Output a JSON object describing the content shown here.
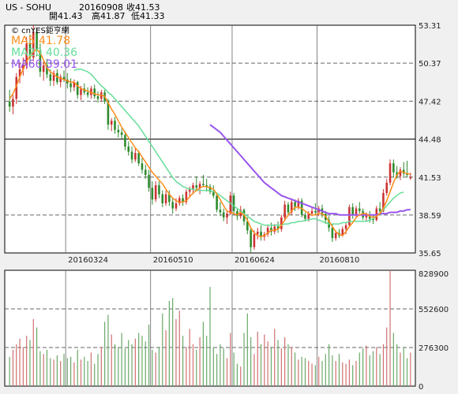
{
  "header": {
    "symbol": "US - SOHU",
    "date": "20160908",
    "close_label": "收41.53",
    "open_label": "開41.43",
    "high_label": "高41.87",
    "low_label": "低41.33"
  },
  "legend": {
    "copyright": "© cnYES鉅亨網",
    "ma5": "MA5 41.78",
    "ma20": "MA20 40.36",
    "ma60": "MA60 39.01"
  },
  "colors": {
    "up": "#cc3333",
    "down": "#2e8b2e",
    "ma5": "#ff8c1a",
    "ma20": "#66dd99",
    "ma60": "#9955ee",
    "grid": "#666666",
    "vol_up": "#d07070",
    "vol_down": "#6aa86a"
  },
  "chart_data": [
    {
      "type": "candlestick",
      "y_ticks": [
        "53.31",
        "50.37",
        "47.42",
        "44.48",
        "41.53",
        "38.59",
        "35.65"
      ],
      "x_ticks": [
        "20160324",
        "20160510",
        "20160624",
        "20160810"
      ],
      "ylim": [
        35.65,
        53.31
      ],
      "series": [
        {
          "name": "MA5",
          "value": 41.78
        },
        {
          "name": "MA20",
          "value": 40.36
        },
        {
          "name": "MA60",
          "value": 39.01
        }
      ],
      "ohlc": [
        [
          47.4,
          48.3,
          46.6,
          47.0
        ],
        [
          47.0,
          47.9,
          46.4,
          47.6
        ],
        [
          47.6,
          49.6,
          47.2,
          49.3
        ],
        [
          49.3,
          50.4,
          48.8,
          49.9
        ],
        [
          49.9,
          50.8,
          49.4,
          50.2
        ],
        [
          50.2,
          52.4,
          49.9,
          51.9
        ],
        [
          51.9,
          52.6,
          50.4,
          50.8
        ],
        [
          50.8,
          53.3,
          50.5,
          52.8
        ],
        [
          52.8,
          53.1,
          50.9,
          51.3
        ],
        [
          51.3,
          51.9,
          49.3,
          49.7
        ],
        [
          49.7,
          50.5,
          49.0,
          50.2
        ],
        [
          50.2,
          50.7,
          49.2,
          49.5
        ],
        [
          49.5,
          49.9,
          48.6,
          49.0
        ],
        [
          49.0,
          49.8,
          48.6,
          49.6
        ],
        [
          49.6,
          49.9,
          48.7,
          48.9
        ],
        [
          48.9,
          49.5,
          48.5,
          49.3
        ],
        [
          49.3,
          49.8,
          48.9,
          49.1
        ],
        [
          49.1,
          49.6,
          48.4,
          48.8
        ],
        [
          48.8,
          49.2,
          48.1,
          48.5
        ],
        [
          48.5,
          49.1,
          48.2,
          48.9
        ],
        [
          48.9,
          49.0,
          47.6,
          47.9
        ],
        [
          47.9,
          48.6,
          47.5,
          48.4
        ],
        [
          48.4,
          48.8,
          47.9,
          48.1
        ],
        [
          48.1,
          48.5,
          47.7,
          47.9
        ],
        [
          47.9,
          48.6,
          47.6,
          48.4
        ],
        [
          48.4,
          48.7,
          47.6,
          47.8
        ],
        [
          47.8,
          48.2,
          47.3,
          47.6
        ],
        [
          47.6,
          48.3,
          47.4,
          48.1
        ],
        [
          48.1,
          48.3,
          47.2,
          47.4
        ],
        [
          47.4,
          47.6,
          45.2,
          45.6
        ],
        [
          45.6,
          46.1,
          45.1,
          45.9
        ],
        [
          45.9,
          46.2,
          44.9,
          45.2
        ],
        [
          45.2,
          45.6,
          44.6,
          45.0
        ],
        [
          45.0,
          45.3,
          44.5,
          44.8
        ],
        [
          44.8,
          45.1,
          43.6,
          43.9
        ],
        [
          43.9,
          44.3,
          43.2,
          43.5
        ],
        [
          43.5,
          43.9,
          42.6,
          42.9
        ],
        [
          42.9,
          43.8,
          42.7,
          43.4
        ],
        [
          43.4,
          43.6,
          42.4,
          42.6
        ],
        [
          42.6,
          43.0,
          41.8,
          42.1
        ],
        [
          42.1,
          42.5,
          41.4,
          41.7
        ],
        [
          41.7,
          42.1,
          40.4,
          40.7
        ],
        [
          40.7,
          41.2,
          39.4,
          39.8
        ],
        [
          39.8,
          41.2,
          39.6,
          40.9
        ],
        [
          40.9,
          41.2,
          39.9,
          40.2
        ],
        [
          40.2,
          40.5,
          39.2,
          39.5
        ],
        [
          39.5,
          40.5,
          39.3,
          40.2
        ],
        [
          40.2,
          40.5,
          39.3,
          39.6
        ],
        [
          39.6,
          39.9,
          38.7,
          39.1
        ],
        [
          39.1,
          39.9,
          38.9,
          39.5
        ],
        [
          39.5,
          40.1,
          39.3,
          39.9
        ],
        [
          39.9,
          40.2,
          39.3,
          39.6
        ],
        [
          39.6,
          40.6,
          39.4,
          40.4
        ],
        [
          40.4,
          40.8,
          40.0,
          40.6
        ],
        [
          40.6,
          41.1,
          40.2,
          40.9
        ],
        [
          40.9,
          41.6,
          40.5,
          40.7
        ],
        [
          40.7,
          41.2,
          40.2,
          41.0
        ],
        [
          41.0,
          41.7,
          40.8,
          40.9
        ],
        [
          40.9,
          41.4,
          40.4,
          40.8
        ],
        [
          40.8,
          41.0,
          40.2,
          40.4
        ],
        [
          40.4,
          40.9,
          39.9,
          40.1
        ],
        [
          40.1,
          40.3,
          38.8,
          39.0
        ],
        [
          39.0,
          39.6,
          38.5,
          38.8
        ],
        [
          38.8,
          39.1,
          38.1,
          38.4
        ],
        [
          38.4,
          38.9,
          37.9,
          38.7
        ],
        [
          38.7,
          40.4,
          38.6,
          40.1
        ],
        [
          40.1,
          40.3,
          38.6,
          38.9
        ],
        [
          38.9,
          39.1,
          38.2,
          38.5
        ],
        [
          38.5,
          39.3,
          38.3,
          39.0
        ],
        [
          39.0,
          39.1,
          37.8,
          38.1
        ],
        [
          38.1,
          38.4,
          37.1,
          37.4
        ],
        [
          37.4,
          37.6,
          35.7,
          36.1
        ],
        [
          36.1,
          37.4,
          35.9,
          37.1
        ],
        [
          37.1,
          37.6,
          36.7,
          37.3
        ],
        [
          37.3,
          37.8,
          36.6,
          36.9
        ],
        [
          36.9,
          37.3,
          36.6,
          37.1
        ],
        [
          37.1,
          37.8,
          36.9,
          37.6
        ],
        [
          37.6,
          38.0,
          37.0,
          37.3
        ],
        [
          37.3,
          37.9,
          37.1,
          37.7
        ],
        [
          37.7,
          38.1,
          37.2,
          37.5
        ],
        [
          37.5,
          38.6,
          37.3,
          38.4
        ],
        [
          38.4,
          39.7,
          38.2,
          39.4
        ],
        [
          39.4,
          39.6,
          38.5,
          38.8
        ],
        [
          38.8,
          39.9,
          38.6,
          39.6
        ],
        [
          39.6,
          39.8,
          38.9,
          39.2
        ],
        [
          39.2,
          39.9,
          39.0,
          39.7
        ],
        [
          39.7,
          39.9,
          38.4,
          38.6
        ],
        [
          38.6,
          38.8,
          38.1,
          38.3
        ],
        [
          38.3,
          38.9,
          38.1,
          38.7
        ],
        [
          38.7,
          39.2,
          38.5,
          38.9
        ],
        [
          38.9,
          39.5,
          38.6,
          38.8
        ],
        [
          38.8,
          39.3,
          38.5,
          39.1
        ],
        [
          39.1,
          39.4,
          38.4,
          38.7
        ],
        [
          38.7,
          38.9,
          37.9,
          38.2
        ],
        [
          38.2,
          38.5,
          37.3,
          37.6
        ],
        [
          37.6,
          37.9,
          36.5,
          36.8
        ],
        [
          36.8,
          37.4,
          36.6,
          37.2
        ],
        [
          37.2,
          37.5,
          36.8,
          37.0
        ],
        [
          37.0,
          37.7,
          36.9,
          37.5
        ],
        [
          37.5,
          38.0,
          37.1,
          37.8
        ],
        [
          37.8,
          39.4,
          37.7,
          39.2
        ],
        [
          39.2,
          39.5,
          38.3,
          38.6
        ],
        [
          38.6,
          39.3,
          38.4,
          39.1
        ],
        [
          39.1,
          39.6,
          38.7,
          38.9
        ],
        [
          38.9,
          39.1,
          38.2,
          38.4
        ],
        [
          38.4,
          38.8,
          38.1,
          38.6
        ],
        [
          38.6,
          38.9,
          38.0,
          38.3
        ],
        [
          38.3,
          38.6,
          37.9,
          38.2
        ],
        [
          38.2,
          39.3,
          38.1,
          39.1
        ],
        [
          39.1,
          39.6,
          38.7,
          38.9
        ],
        [
          38.9,
          40.6,
          38.8,
          40.3
        ],
        [
          40.3,
          41.4,
          40.1,
          41.1
        ],
        [
          41.1,
          42.9,
          40.9,
          42.6
        ],
        [
          42.6,
          42.9,
          41.5,
          41.9
        ],
        [
          41.9,
          42.4,
          41.4,
          41.6
        ],
        [
          41.6,
          42.3,
          41.3,
          42.1
        ],
        [
          42.1,
          42.7,
          41.6,
          41.8
        ],
        [
          41.8,
          42.8,
          41.5,
          41.7
        ],
        [
          41.43,
          41.87,
          41.33,
          41.53
        ]
      ],
      "ma5": [
        47.6,
        48.0,
        48.6,
        49.3,
        49.9,
        50.5,
        50.9,
        51.3,
        51.4,
        51.2,
        50.6,
        50.0,
        49.7,
        49.5,
        49.3,
        49.2,
        49.1,
        49.0,
        48.9,
        48.9,
        48.6,
        48.4,
        48.3,
        48.2,
        48.1,
        48.0,
        47.9,
        47.9,
        47.8,
        47.3,
        46.8,
        46.4,
        45.9,
        45.4,
        45.0,
        44.6,
        44.2,
        43.8,
        43.5,
        43.1,
        42.7,
        42.3,
        41.9,
        41.6,
        41.3,
        41.0,
        40.6,
        40.2,
        39.9,
        39.7,
        39.6,
        39.6,
        39.7,
        40.0,
        40.3,
        40.5,
        40.7,
        40.8,
        40.8,
        40.7,
        40.6,
        40.2,
        39.8,
        39.3,
        38.9,
        38.8,
        38.7,
        38.6,
        38.8,
        38.6,
        38.2,
        37.6,
        37.2,
        37.0,
        36.9,
        37.0,
        37.2,
        37.4,
        37.4,
        37.5,
        37.8,
        38.2,
        38.6,
        38.9,
        39.2,
        39.2,
        39.1,
        38.9,
        38.7,
        38.6,
        38.6,
        38.7,
        38.7,
        38.5,
        38.1,
        37.7,
        37.3,
        37.1,
        37.0,
        37.3,
        37.7,
        38.0,
        38.4,
        38.6,
        38.7,
        38.7,
        38.5,
        38.4,
        38.5,
        38.7,
        39.1,
        39.7,
        40.4,
        41.1,
        41.7,
        42.0,
        41.9,
        41.8,
        41.78
      ],
      "ma20": [
        null,
        null,
        null,
        null,
        null,
        null,
        null,
        null,
        null,
        null,
        null,
        null,
        null,
        null,
        null,
        null,
        null,
        null,
        null,
        49.8,
        49.9,
        49.9,
        49.8,
        49.7,
        49.5,
        49.2,
        48.9,
        48.6,
        48.4,
        48.1,
        47.9,
        47.6,
        47.3,
        47.0,
        46.7,
        46.4,
        46.1,
        45.8,
        45.5,
        45.1,
        44.7,
        44.3,
        43.9,
        43.5,
        43.1,
        42.7,
        42.3,
        41.9,
        41.5,
        41.2,
        41.0,
        40.8,
        40.7,
        40.6,
        40.6,
        40.5,
        40.5,
        40.5,
        40.5,
        40.5,
        40.4,
        40.3,
        40.1,
        39.9,
        39.7,
        39.5,
        39.3,
        39.1,
        38.9,
        38.7,
        38.5,
        38.3,
        38.1,
        38.0,
        37.9,
        37.8,
        37.8,
        37.8,
        37.8,
        37.8,
        37.8,
        37.9,
        37.9,
        38.0,
        38.0,
        38.1,
        38.1,
        38.2,
        38.2,
        38.3,
        38.3,
        38.2,
        38.1,
        38.0,
        37.9,
        37.9,
        37.9,
        37.9,
        38.0,
        38.0,
        38.1,
        38.1,
        38.1,
        38.1,
        38.1,
        38.1,
        38.2,
        38.3,
        38.5,
        38.7,
        39.0,
        39.3,
        39.6,
        39.9,
        40.1,
        40.3,
        40.36
      ],
      "ma60": [
        null,
        null,
        null,
        null,
        null,
        null,
        null,
        null,
        null,
        null,
        null,
        null,
        null,
        null,
        null,
        null,
        null,
        null,
        null,
        null,
        null,
        null,
        null,
        null,
        null,
        null,
        null,
        null,
        null,
        null,
        null,
        null,
        null,
        null,
        null,
        null,
        null,
        null,
        null,
        null,
        null,
        null,
        null,
        null,
        null,
        null,
        null,
        null,
        null,
        null,
        null,
        null,
        null,
        null,
        null,
        null,
        null,
        null,
        null,
        45.6,
        45.4,
        45.2,
        45.0,
        44.7,
        44.4,
        44.1,
        43.8,
        43.5,
        43.2,
        42.9,
        42.6,
        42.3,
        42.0,
        41.7,
        41.4,
        41.1,
        40.9,
        40.7,
        40.5,
        40.3,
        40.1,
        40.0,
        39.9,
        39.8,
        39.7,
        39.6,
        39.5,
        39.4,
        39.3,
        39.2,
        39.1,
        39.0,
        38.9,
        38.8,
        38.7,
        38.7,
        38.7,
        38.6,
        38.6,
        38.6,
        38.6,
        38.6,
        38.6,
        38.6,
        38.6,
        38.6,
        38.6,
        38.6,
        38.6,
        38.7,
        38.7,
        38.7,
        38.8,
        38.8,
        38.8,
        38.9,
        38.9,
        39.0,
        39.01
      ]
    },
    {
      "type": "bar",
      "y_ticks": [
        "828900",
        "552600",
        "276300",
        "0"
      ],
      "ylim": [
        0,
        828900
      ],
      "volume": [
        210000,
        260000,
        300000,
        340000,
        280000,
        360000,
        330000,
        480000,
        420000,
        250000,
        230000,
        260000,
        200000,
        190000,
        220000,
        180000,
        230000,
        200000,
        210000,
        170000,
        260000,
        190000,
        210000,
        180000,
        240000,
        160000,
        230000,
        280000,
        460000,
        510000,
        370000,
        300000,
        280000,
        380000,
        270000,
        330000,
        300000,
        340000,
        380000,
        360000,
        320000,
        440000,
        260000,
        240000,
        280000,
        520000,
        400000,
        610000,
        630000,
        480000,
        540000,
        360000,
        280000,
        410000,
        300000,
        260000,
        350000,
        460000,
        360000,
        710000,
        280000,
        230000,
        300000,
        270000,
        200000,
        380000,
        240000,
        160000,
        140000,
        380000,
        520000,
        350000,
        230000,
        390000,
        300000,
        370000,
        320000,
        280000,
        410000,
        330000,
        270000,
        350000,
        300000,
        280000,
        240000,
        190000,
        210000,
        200000,
        180000,
        160000,
        150000,
        210000,
        180000,
        230000,
        300000,
        220000,
        180000,
        230000,
        170000,
        160000,
        190000,
        150000,
        180000,
        240000,
        270000,
        290000,
        220000,
        250000,
        280000,
        230000,
        300000,
        420000,
        828900,
        380000,
        300000,
        240000,
        280000,
        200000,
        240000
      ]
    }
  ]
}
